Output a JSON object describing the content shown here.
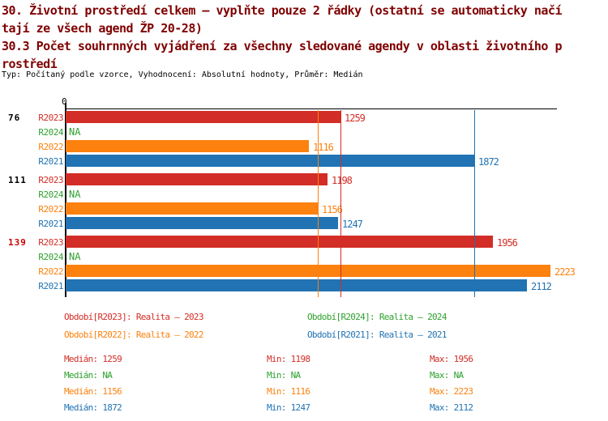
{
  "header": {
    "title_lines": [
      "30. Životní prostředí celkem – vyplňte pouze 2 řádky (ostatní se automaticky načí",
      "tají ze všech agend ŽP 20-28)",
      "30.3 Počet souhrnných vyjádření za všechny sledované agendy v oblasti životního p",
      "rostředí"
    ],
    "subtitle": "Typ: Počítaný podle vzorce, Vyhodnocení: Absolutní hodnoty, Průměr: Medián"
  },
  "colors": {
    "title": "#7f0000",
    "text": "#000000",
    "highlight_group_label": "#cc0000",
    "series": {
      "R2023": "#d22d26",
      "R2024": "#2ea12e",
      "R2022": "#fd810e",
      "R2021": "#2173b3"
    }
  },
  "chart_data": {
    "type": "bar",
    "orientation": "horizontal",
    "axis_origin_label": "0",
    "axis_range": [
      0,
      2250
    ],
    "grid": false,
    "na_text": "NA",
    "series_order": [
      "R2023",
      "R2024",
      "R2022",
      "R2021"
    ],
    "groups": [
      {
        "label": "76",
        "label_highlight": false,
        "values": {
          "R2023": 1259,
          "R2024": null,
          "R2022": 1116,
          "R2021": 1872
        }
      },
      {
        "label": "111",
        "label_highlight": false,
        "values": {
          "R2023": 1198,
          "R2024": null,
          "R2022": 1156,
          "R2021": 1247
        }
      },
      {
        "label": "139",
        "label_highlight": true,
        "values": {
          "R2023": 1956,
          "R2024": null,
          "R2022": 2223,
          "R2021": 2112
        }
      }
    ],
    "median_lines": [
      {
        "series": "R2022",
        "value": 1156
      },
      {
        "series": "R2023",
        "value": 1259
      },
      {
        "series": "R2021",
        "value": 1872
      }
    ]
  },
  "legend": [
    {
      "series": "R2023",
      "label": "Období[R2023]: Realita – 2023",
      "col": 0,
      "row": 0
    },
    {
      "series": "R2024",
      "label": "Období[R2024]: Realita – 2024",
      "col": 1,
      "row": 0
    },
    {
      "series": "R2022",
      "label": "Období[R2022]: Realita – 2022",
      "col": 0,
      "row": 1
    },
    {
      "series": "R2021",
      "label": "Období[R2021]: Realita – 2021",
      "col": 1,
      "row": 1
    }
  ],
  "stats": {
    "labels": {
      "median": "Medián",
      "min": "Min",
      "max": "Max"
    },
    "rows": [
      {
        "series": "R2023",
        "median": "1259",
        "min": "1198",
        "max": "1956"
      },
      {
        "series": "R2024",
        "median": "NA",
        "min": "NA",
        "max": "NA"
      },
      {
        "series": "R2022",
        "median": "1156",
        "min": "1116",
        "max": "2223"
      },
      {
        "series": "R2021",
        "median": "1872",
        "min": "1247",
        "max": "2112"
      }
    ]
  }
}
